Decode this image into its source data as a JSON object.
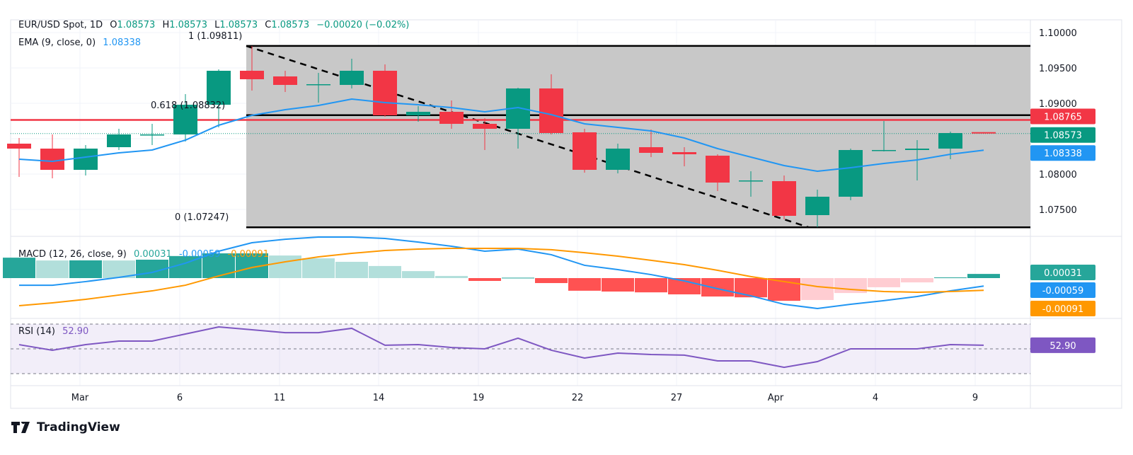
{
  "header": {
    "symbol": "EUR/USD Spot, 1D",
    "o_label": "O",
    "o": "1.08573",
    "h_label": "H",
    "h": "1.08573",
    "l_label": "L",
    "l": "1.08573",
    "c_label": "C",
    "c": "1.08573",
    "change": "−0.00020 (−0.02%)",
    "ema_label": "EMA (9, close, 0)",
    "ema_value": "1.08338"
  },
  "fib": {
    "level_1": "1 (1.09811)",
    "level_0618": "0.618 (1.08832)",
    "level_0": "0 (1.07247)",
    "p1": 1.09811,
    "p0618": 1.08832,
    "p0": 1.07247
  },
  "macd": {
    "label": "MACD (12, 26, close, 9)",
    "hist": "0.00031",
    "macd": "-0.00059",
    "signal": "-0.00091"
  },
  "rsi": {
    "label": "RSI (14)",
    "value": "52.90"
  },
  "price_axis": {
    "ticks": [
      "1.10000",
      "1.09500",
      "1.09000",
      "1.08000",
      "1.07500"
    ],
    "tag_red": "1.08765",
    "tag_last": "1.08573",
    "tag_ema": "1.08338"
  },
  "macd_axis": {
    "tag_hist": "0.00031",
    "tag_macd": "-0.00059",
    "tag_signal": "-0.00091"
  },
  "rsi_axis": {
    "tag": "52.90"
  },
  "dates": [
    "Mar",
    "6",
    "11",
    "14",
    "19",
    "22",
    "27",
    "Apr",
    "4",
    "9"
  ],
  "brand": "TradingView",
  "colors": {
    "up": "#089981",
    "down": "#f23645",
    "ema": "#2196f3",
    "signal": "#ff9800",
    "rsi": "#7e57c2"
  },
  "chart_data": {
    "type": "candlestick",
    "title": "EUR/USD Spot, 1D",
    "ohlc": [
      [
        1.0843,
        1.0851,
        1.0796,
        1.0836
      ],
      [
        1.0836,
        1.0856,
        1.0794,
        1.0806
      ],
      [
        1.0806,
        1.0841,
        1.0798,
        1.0836
      ],
      [
        1.0838,
        1.0864,
        1.0834,
        1.0856
      ],
      [
        1.0855,
        1.0871,
        1.0841,
        1.0856
      ],
      [
        1.0856,
        1.0913,
        1.0846,
        1.0898
      ],
      [
        1.0898,
        1.0948,
        1.0866,
        1.0946
      ],
      [
        1.0946,
        1.0981,
        1.0918,
        1.0934
      ],
      [
        1.0938,
        1.0946,
        1.0916,
        1.0926
      ],
      [
        1.0926,
        1.0943,
        1.0901,
        1.0927
      ],
      [
        1.0926,
        1.0963,
        1.0921,
        1.0946
      ],
      [
        1.0946,
        1.0955,
        1.0881,
        1.0883
      ],
      [
        1.0883,
        1.0896,
        1.0874,
        1.0888
      ],
      [
        1.0888,
        1.0904,
        1.0864,
        1.0871
      ],
      [
        1.0871,
        1.0879,
        1.0834,
        1.0864
      ],
      [
        1.0864,
        1.0922,
        1.0836,
        1.0921
      ],
      [
        1.0921,
        1.0941,
        1.0856,
        1.0858
      ],
      [
        1.0859,
        1.0864,
        1.0802,
        1.0806
      ],
      [
        1.0806,
        1.0843,
        1.0801,
        1.0836
      ],
      [
        1.0838,
        1.0863,
        1.0824,
        1.083
      ],
      [
        1.0831,
        1.0838,
        1.0811,
        1.0828
      ],
      [
        1.0826,
        1.0828,
        1.0776,
        1.0788
      ],
      [
        1.079,
        1.0804,
        1.0768,
        1.0791
      ],
      [
        1.079,
        1.0798,
        1.0736,
        1.0741
      ],
      [
        1.0742,
        1.0778,
        1.0725,
        1.0768
      ],
      [
        1.0768,
        1.0836,
        1.0763,
        1.0834
      ],
      [
        1.0833,
        1.0875,
        1.0832,
        1.0834
      ],
      [
        1.0834,
        1.0848,
        1.0791,
        1.0836
      ],
      [
        1.0836,
        1.086,
        1.0821,
        1.0858
      ],
      [
        1.08593,
        1.08593,
        1.08573,
        1.08573
      ]
    ],
    "ema9": [
      1.0821,
      1.0818,
      1.0824,
      1.083,
      1.0834,
      1.0848,
      1.0869,
      1.0883,
      1.0891,
      1.0897,
      1.0906,
      1.0901,
      1.0898,
      1.0894,
      1.0888,
      1.0894,
      1.0884,
      1.0871,
      1.0866,
      1.0861,
      1.0851,
      1.0836,
      1.0824,
      1.0812,
      1.0804,
      1.0809,
      1.0815,
      1.082,
      1.0828,
      1.08338
    ],
    "macd_line_e4": [
      -5.3,
      -5.3,
      -2.6,
      0.5,
      4.2,
      11.1,
      20,
      26.3,
      28.9,
      30.5,
      30.5,
      29.5,
      26.8,
      23.7,
      20,
      21.6,
      17.4,
      9.5,
      6.3,
      2.6,
      -2.1,
      -7.9,
      -13.2,
      -19.5,
      -22.6,
      -19.5,
      -16.8,
      -13.7,
      -9.5,
      -5.9
    ],
    "signal_line_e4": [
      -20.5,
      -18.4,
      -15.8,
      -12.6,
      -9.5,
      -5.3,
      1.6,
      7.9,
      12.1,
      15.8,
      18.4,
      20.5,
      21.6,
      22.1,
      22.1,
      22.1,
      21.1,
      18.9,
      16.3,
      13.2,
      10,
      5.8,
      1.1,
      -2.6,
      -6.3,
      -8.4,
      -10,
      -10.5,
      -10,
      -9.1
    ],
    "histogram_e4": [
      15.2,
      13.1,
      13.2,
      13.1,
      13.7,
      16.4,
      18.4,
      18.4,
      16.8,
      14.7,
      12.1,
      9,
      5.2,
      1.6,
      -2.1,
      0.3,
      -3.7,
      -9.4,
      -10,
      -10.6,
      -12.1,
      -13.7,
      -14.3,
      -16.9,
      -16.3,
      -11.1,
      -6.8,
      -3.2,
      0.5,
      3.1
    ],
    "rsi14": [
      53.4,
      48.9,
      53.4,
      56.3,
      56.3,
      62,
      67.7,
      65.4,
      63.1,
      63.1,
      66.6,
      52.9,
      53.4,
      51.1,
      50,
      58.6,
      48.9,
      42.6,
      46.6,
      45.4,
      44.9,
      40.3,
      40.3,
      35.1,
      39.7,
      50,
      50,
      50,
      53.4,
      52.9
    ],
    "rsi_levels": [
      70,
      50,
      30
    ],
    "horizontal_line": 1.08765,
    "ylim": [
      1.0705,
      1.1005
    ]
  }
}
